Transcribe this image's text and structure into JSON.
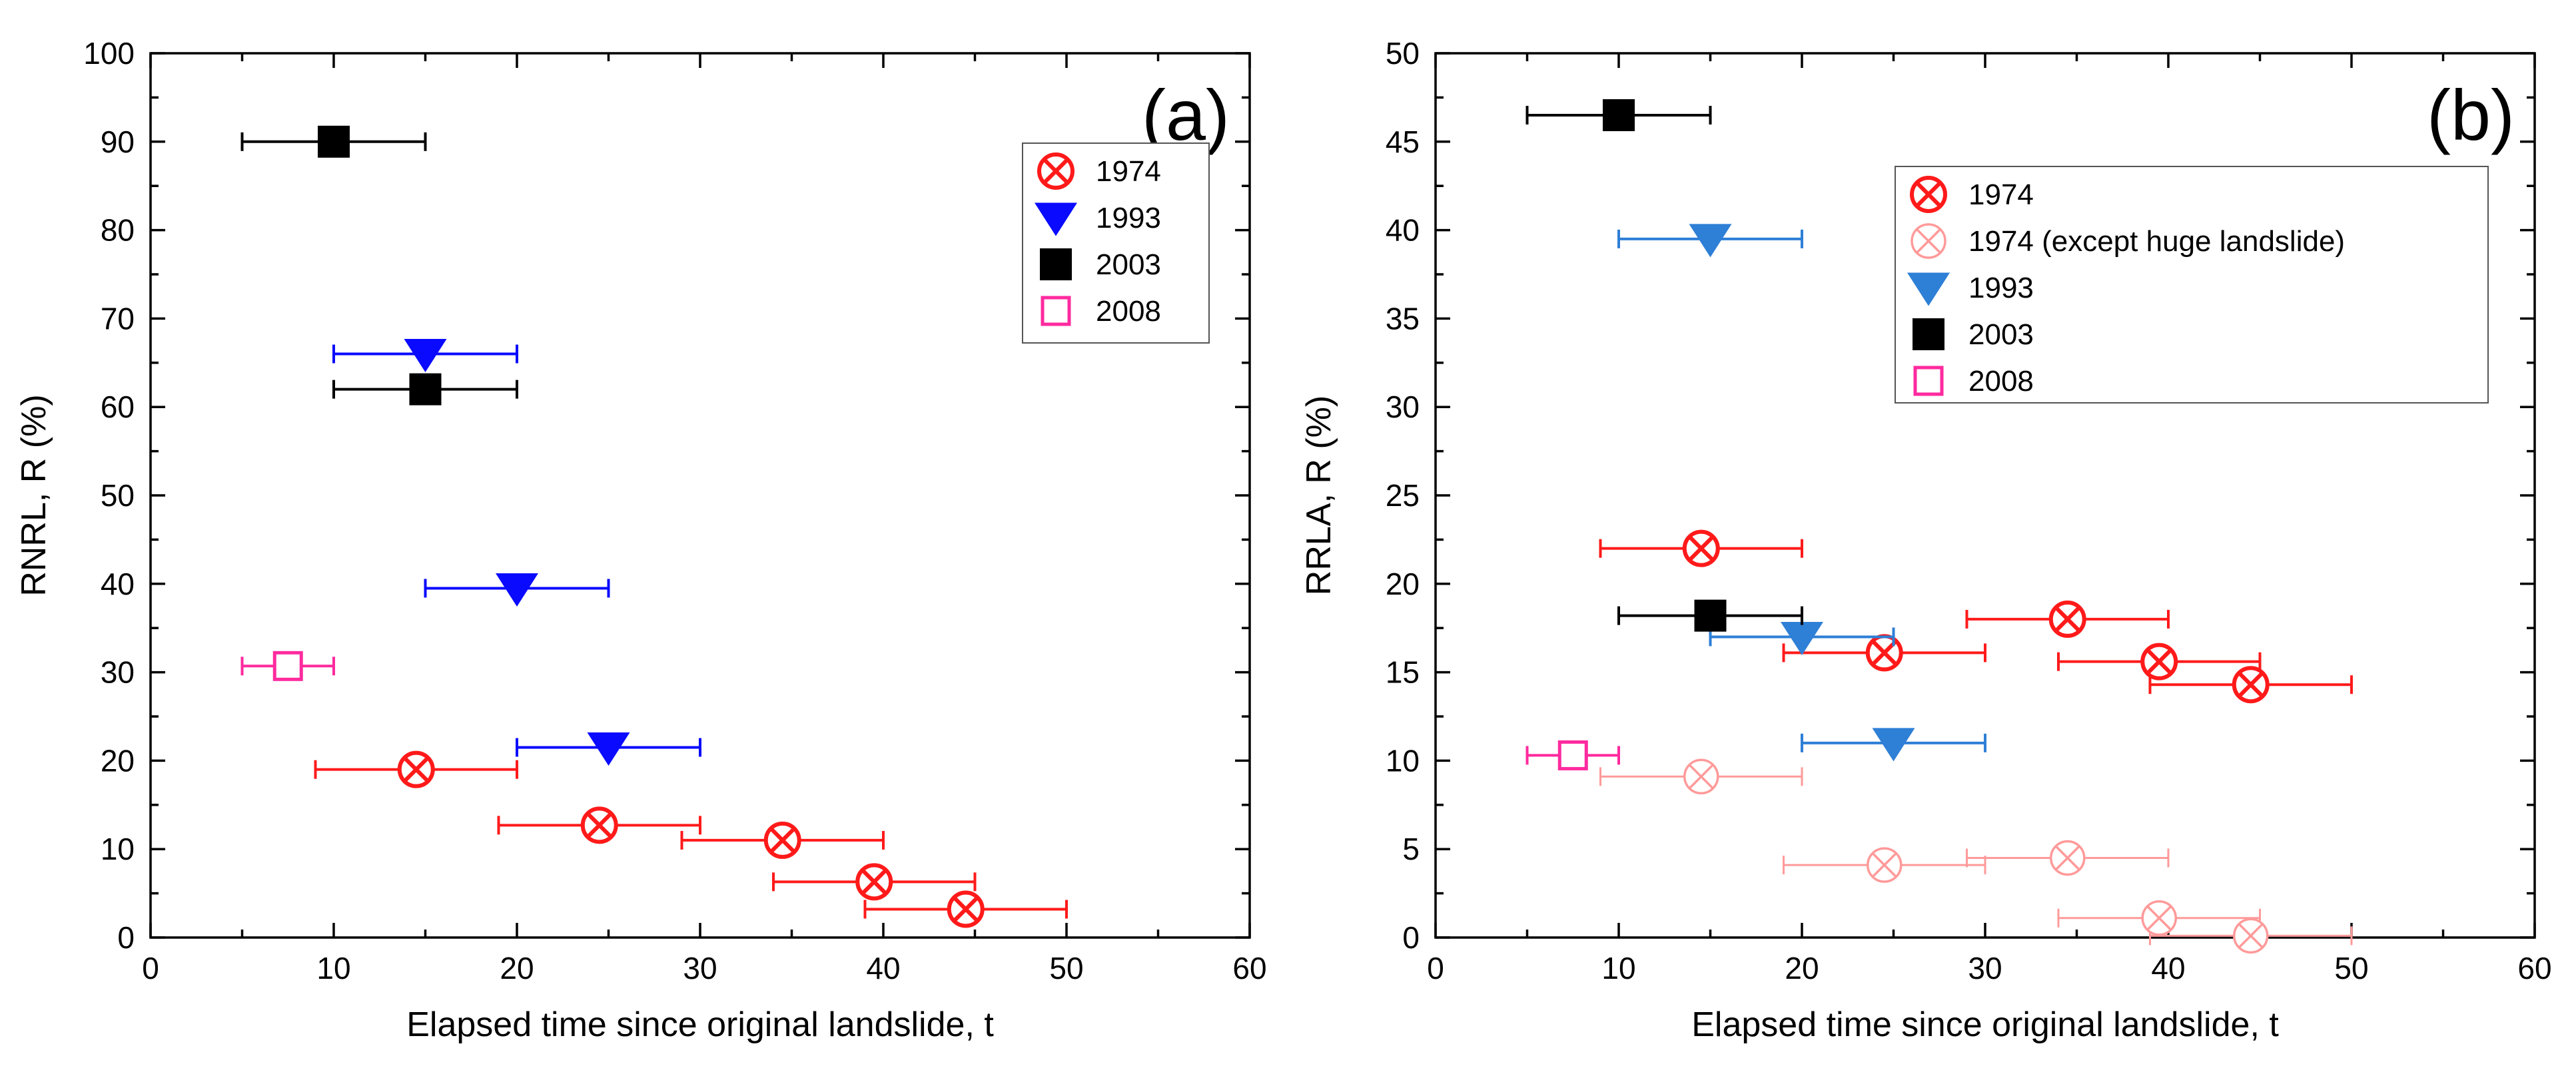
{
  "colors": {
    "red_1974": "#ff1a1a",
    "light_1974": "#ff9a9a",
    "blue_1993_a": "#0a0aff",
    "blue_1993_b": "#2e7fd6",
    "black_2003": "#000000",
    "magenta_2008": "#ff2a9e"
  },
  "chart_data": [
    {
      "type": "scatter",
      "panel_label": "(a)",
      "xlabel": "Elapsed time since original landslide, t",
      "ylabel": "RNRL, R (%)",
      "xlim": [
        0,
        60
      ],
      "ylim": [
        0,
        100
      ],
      "x_ticks": [
        "0",
        "10",
        "20",
        "30",
        "40",
        "50",
        "60"
      ],
      "y_ticks": [
        "0",
        "10",
        "20",
        "30",
        "40",
        "50",
        "60",
        "70",
        "80",
        "90",
        "100"
      ],
      "legend_position": "top-right",
      "series": [
        {
          "name": "1974",
          "marker": "circle-x",
          "color": "#ff1a1a",
          "points": [
            {
              "x": 14.5,
              "y": 19,
              "xerr": [
                9,
                20
              ]
            },
            {
              "x": 24.5,
              "y": 12.7,
              "xerr": [
                19,
                30
              ]
            },
            {
              "x": 34.5,
              "y": 11,
              "xerr": [
                29,
                40
              ]
            },
            {
              "x": 39.5,
              "y": 6.3,
              "xerr": [
                34,
                45
              ]
            },
            {
              "x": 44.5,
              "y": 3.2,
              "xerr": [
                39,
                50
              ]
            }
          ]
        },
        {
          "name": "1993",
          "marker": "triangle-down",
          "color": "#0a0aff",
          "points": [
            {
              "x": 15,
              "y": 66,
              "xerr": [
                10,
                20
              ]
            },
            {
              "x": 20,
              "y": 39.5,
              "xerr": [
                15,
                25
              ]
            },
            {
              "x": 25,
              "y": 21.5,
              "xerr": [
                20,
                30
              ]
            }
          ]
        },
        {
          "name": "2003",
          "marker": "square-filled",
          "color": "#000000",
          "points": [
            {
              "x": 10,
              "y": 90,
              "xerr": [
                5,
                15
              ]
            },
            {
              "x": 15,
              "y": 62,
              "xerr": [
                10,
                20
              ]
            }
          ]
        },
        {
          "name": "2008",
          "marker": "square-open",
          "color": "#ff2a9e",
          "points": [
            {
              "x": 7.5,
              "y": 30.7,
              "xerr": [
                5,
                10
              ]
            }
          ]
        }
      ]
    },
    {
      "type": "scatter",
      "panel_label": "(b)",
      "xlabel": "Elapsed time since original landslide, t",
      "ylabel": "RRLA, R (%)",
      "xlim": [
        0,
        60
      ],
      "ylim": [
        0,
        50
      ],
      "x_ticks": [
        "0",
        "10",
        "20",
        "30",
        "40",
        "50",
        "60"
      ],
      "y_ticks": [
        "0",
        "5",
        "10",
        "15",
        "20",
        "25",
        "30",
        "35",
        "40",
        "45",
        "50"
      ],
      "legend_position": "top-right",
      "series": [
        {
          "name": "1974",
          "marker": "circle-x",
          "color": "#ff1a1a",
          "points": [
            {
              "x": 14.5,
              "y": 22,
              "xerr": [
                9,
                20
              ]
            },
            {
              "x": 24.5,
              "y": 16.1,
              "xerr": [
                19,
                30
              ]
            },
            {
              "x": 34.5,
              "y": 18,
              "xerr": [
                29,
                40
              ]
            },
            {
              "x": 39.5,
              "y": 15.6,
              "xerr": [
                34,
                45
              ]
            },
            {
              "x": 44.5,
              "y": 14.3,
              "xerr": [
                39,
                50
              ]
            }
          ]
        },
        {
          "name": "1974 (except huge landslide)",
          "marker": "circle-x-light",
          "color": "#ff9a9a",
          "points": [
            {
              "x": 14.5,
              "y": 9.1,
              "xerr": [
                9,
                20
              ]
            },
            {
              "x": 24.5,
              "y": 4.1,
              "xerr": [
                19,
                30
              ]
            },
            {
              "x": 34.5,
              "y": 4.5,
              "xerr": [
                29,
                40
              ]
            },
            {
              "x": 39.5,
              "y": 1.1,
              "xerr": [
                34,
                45
              ]
            },
            {
              "x": 44.5,
              "y": 0.1,
              "xerr": [
                39,
                50
              ]
            }
          ]
        },
        {
          "name": "1993",
          "marker": "triangle-down",
          "color": "#2e7fd6",
          "points": [
            {
              "x": 15,
              "y": 39.5,
              "xerr": [
                10,
                20
              ]
            },
            {
              "x": 20,
              "y": 17,
              "xerr": [
                15,
                25
              ]
            },
            {
              "x": 25,
              "y": 11,
              "xerr": [
                20,
                30
              ]
            }
          ]
        },
        {
          "name": "2003",
          "marker": "square-filled",
          "color": "#000000",
          "points": [
            {
              "x": 10,
              "y": 46.5,
              "xerr": [
                5,
                15
              ]
            },
            {
              "x": 15,
              "y": 18.2,
              "xerr": [
                10,
                20
              ]
            }
          ]
        },
        {
          "name": "2008",
          "marker": "square-open",
          "color": "#ff2a9e",
          "points": [
            {
              "x": 7.5,
              "y": 10.3,
              "xerr": [
                5,
                10
              ]
            }
          ]
        }
      ]
    }
  ]
}
